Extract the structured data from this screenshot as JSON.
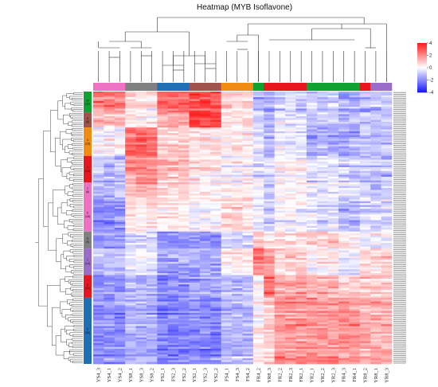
{
  "chart_data": {
    "type": "heatmap",
    "title": "Heatmap (MYB Isoflavone)",
    "columns": [
      "YS4_3",
      "YS4_1",
      "YS4_2",
      "YS8_1",
      "YS8_3",
      "YS8_2",
      "FS2_1",
      "FS2_3",
      "FS2_2",
      "YS2_1",
      "YS2_3",
      "YS2_2",
      "FS4_1",
      "FS4_3",
      "FS4_2",
      "FR4_2",
      "YR8_3",
      "FR2_2",
      "FR2_3",
      "FR2_1",
      "YR2_1",
      "YR2_2",
      "YR2_3",
      "FR4_3",
      "FR4_1",
      "YR8_2",
      "YR8_1",
      "YR8_3"
    ],
    "column_groups": [
      {
        "color": "#ee72c4",
        "count": 3
      },
      {
        "color": "#808080",
        "count": 3
      },
      {
        "color": "#1f6fb4",
        "count": 3
      },
      {
        "color": "#a0524d",
        "count": 3
      },
      {
        "color": "#f08c14",
        "count": 3
      },
      {
        "color": "#11a032",
        "count": 1
      },
      {
        "color": "#e8161e",
        "count": 1
      },
      {
        "color": "#e8161e",
        "count": 3
      },
      {
        "color": "#11a032",
        "count": 3
      },
      {
        "color": "#11a032",
        "count": 2
      },
      {
        "color": "#e8161e",
        "count": 1
      },
      {
        "color": "#9a6ec8",
        "count": 2
      }
    ],
    "row_clusters": [
      {
        "label": "12\n(11)",
        "color": "#11a032",
        "rows": 11
      },
      {
        "label": "8\n(8)",
        "color": "#a0524d",
        "rows": 8
      },
      {
        "label": "4\n(15)",
        "color": "#f08c14",
        "rows": 15
      },
      {
        "label": "3\n(14)",
        "color": "#e8161e",
        "rows": 14
      },
      {
        "label": "1\n(8)",
        "color": "#ee72c4",
        "rows": 8
      },
      {
        "label": "6\n(18)",
        "color": "#ee72c4",
        "rows": 18
      },
      {
        "label": "11\n(9)",
        "color": "#808080",
        "rows": 9
      },
      {
        "label": "7\n(14)",
        "color": "#9a6ec8",
        "rows": 14
      },
      {
        "label": "3\n(12)",
        "color": "#e8161e",
        "rows": 12
      },
      {
        "label": "5\n(35)",
        "color": "#1f6fb4",
        "rows": 35
      }
    ],
    "n_rows": 144,
    "value_range": [
      -4,
      4
    ],
    "color_scale": {
      "low": "#1a1aff",
      "mid": "#ffffff",
      "high": "#ff1a1a"
    },
    "legend": {
      "position": "top-right",
      "ticks": [
        4,
        2,
        0,
        -2,
        -4
      ]
    },
    "block_pattern": [
      [
        1.2,
        0.6,
        0.0,
        -0.6,
        -0.7,
        -1.0,
        -0.8,
        -0.6,
        -0.9,
        -1.0
      ],
      [
        1.2,
        0.6,
        0.0,
        -0.6,
        -0.7,
        -1.0,
        -0.8,
        -0.6,
        -0.9,
        -1.0
      ],
      [
        1.2,
        0.6,
        0.0,
        -0.6,
        -0.7,
        -1.0,
        -0.8,
        -0.6,
        -0.9,
        -1.0
      ],
      [
        0.4,
        0.2,
        1.4,
        1.0,
        0.7,
        0.3,
        -0.3,
        -0.2,
        -0.7,
        -0.7
      ],
      [
        0.4,
        0.2,
        1.4,
        1.0,
        0.7,
        0.3,
        -0.3,
        -0.2,
        -0.7,
        -0.7
      ],
      [
        0.4,
        0.2,
        1.4,
        1.0,
        0.7,
        0.3,
        -0.3,
        -0.2,
        -0.7,
        -0.7
      ],
      [
        1.4,
        0.8,
        0.4,
        0.6,
        0.4,
        0.2,
        -0.9,
        -0.8,
        -1.0,
        -1.1
      ],
      [
        1.4,
        0.8,
        0.4,
        0.6,
        0.4,
        0.2,
        -0.9,
        -0.8,
        -1.0,
        -1.1
      ],
      [
        1.4,
        0.8,
        0.4,
        0.6,
        0.4,
        0.2,
        -0.9,
        -0.8,
        -1.0,
        -1.1
      ],
      [
        1.6,
        1.8,
        0.3,
        0.2,
        0.1,
        0.0,
        -0.9,
        -0.8,
        -0.8,
        -1.1
      ],
      [
        1.6,
        1.8,
        0.3,
        0.2,
        0.1,
        0.0,
        -0.9,
        -0.8,
        -0.8,
        -1.1
      ],
      [
        1.6,
        1.8,
        0.3,
        0.2,
        0.1,
        0.0,
        -0.9,
        -0.8,
        -0.8,
        -1.1
      ],
      [
        0.4,
        0.3,
        0.2,
        0.0,
        0.1,
        0.4,
        -0.3,
        0.1,
        -0.6,
        -0.6
      ],
      [
        0.4,
        0.3,
        0.2,
        0.0,
        0.1,
        0.4,
        -0.3,
        0.1,
        -0.6,
        -0.6
      ],
      [
        0.4,
        0.3,
        0.2,
        0.0,
        0.1,
        0.4,
        -0.3,
        0.1,
        -0.6,
        -0.6
      ],
      [
        -0.6,
        -0.4,
        -0.3,
        -0.3,
        -0.1,
        -0.2,
        0.6,
        1.2,
        0.1,
        0.2
      ],
      [
        -0.8,
        -0.6,
        -0.6,
        -0.4,
        -0.5,
        -0.5,
        0.4,
        0.8,
        1.4,
        0.5
      ],
      [
        -0.4,
        -0.2,
        -0.2,
        0.0,
        0.0,
        0.0,
        0.4,
        0.4,
        0.9,
        1.0
      ],
      [
        -0.4,
        -0.2,
        -0.2,
        0.0,
        0.0,
        0.0,
        0.4,
        0.4,
        0.9,
        1.0
      ],
      [
        -0.4,
        -0.2,
        -0.2,
        0.0,
        0.0,
        0.0,
        0.4,
        0.4,
        0.9,
        1.0
      ],
      [
        -0.5,
        -0.5,
        -0.7,
        -0.3,
        -0.2,
        -0.3,
        0.5,
        0.0,
        0.7,
        1.0
      ],
      [
        -0.5,
        -0.5,
        -0.7,
        -0.3,
        -0.2,
        -0.3,
        0.5,
        0.0,
        0.7,
        1.0
      ],
      [
        -0.5,
        -0.5,
        -0.7,
        -0.3,
        -0.2,
        -0.3,
        0.5,
        0.0,
        0.7,
        1.0
      ],
      [
        -0.8,
        -0.7,
        -0.8,
        -0.5,
        -0.4,
        -0.6,
        0.3,
        -0.2,
        0.5,
        1.0
      ],
      [
        -0.8,
        -0.7,
        -0.8,
        -0.5,
        -0.4,
        -0.6,
        0.3,
        -0.2,
        0.5,
        1.0
      ],
      [
        -0.6,
        -0.5,
        -0.5,
        -0.6,
        -0.5,
        -0.3,
        -0.1,
        0.3,
        0.5,
        0.8
      ],
      [
        -0.6,
        -0.5,
        -0.5,
        -0.6,
        -0.5,
        -0.3,
        -0.1,
        0.3,
        0.5,
        0.8
      ],
      [
        -0.6,
        -0.5,
        -0.5,
        -0.6,
        -0.5,
        -0.3,
        -0.1,
        0.3,
        0.5,
        0.8
      ]
    ]
  }
}
